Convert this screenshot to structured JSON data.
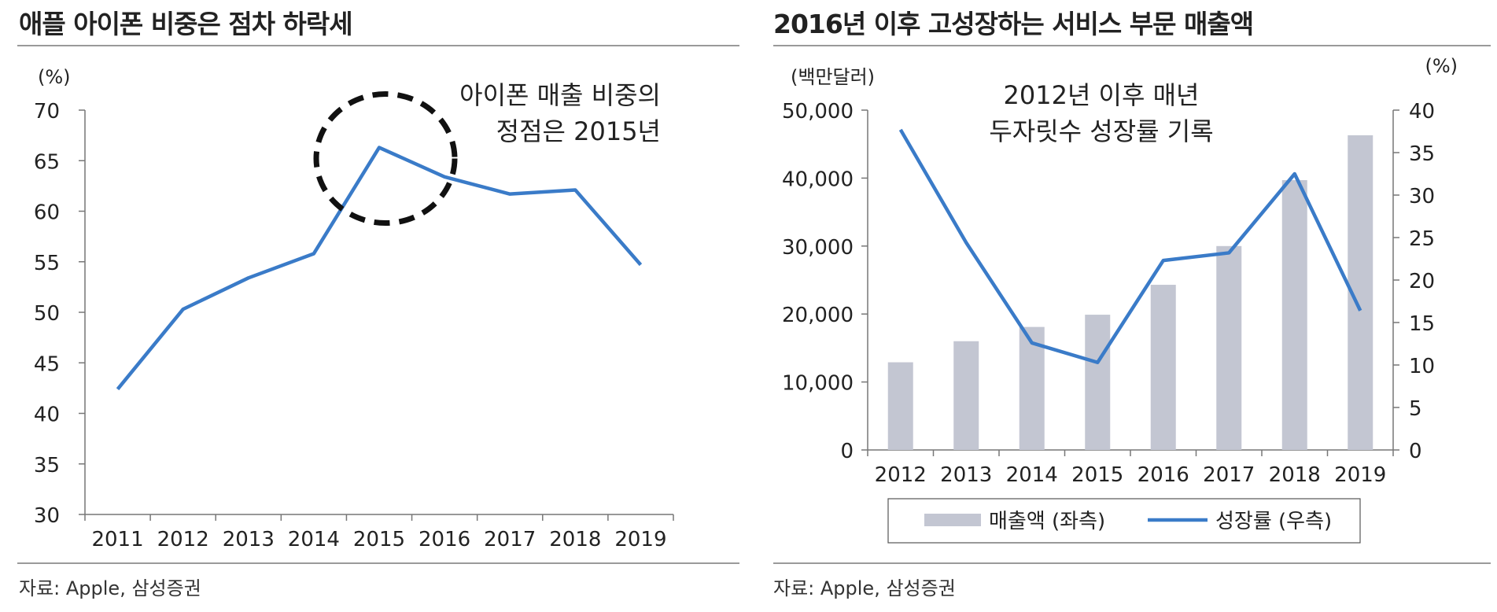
{
  "left": {
    "title": "애플 아이폰 비중은 점차 하락세",
    "source": "자료: Apple, 삼성증권"
  },
  "right": {
    "title": "2016년 이후 고성장하는 서비스 부문 매출액",
    "source": "자료: Apple, 삼성증권"
  },
  "colors": {
    "line": "#3a7bc8",
    "bar": "#c3c6d2",
    "axis": "#777777",
    "text": "#222222"
  },
  "chart_data": [
    {
      "type": "line",
      "x": [
        "2011",
        "2012",
        "2013",
        "2014",
        "2015",
        "2016",
        "2017",
        "2018",
        "2019"
      ],
      "values": [
        42.4,
        50.3,
        53.4,
        55.8,
        66.3,
        63.4,
        61.7,
        62.1,
        54.7
      ],
      "ylabel": "(%)",
      "ylim": [
        30,
        70
      ],
      "yticks": [
        "30",
        "35",
        "40",
        "45",
        "50",
        "55",
        "60",
        "65",
        "70"
      ],
      "annotation": [
        "아이폰 매출 비중의",
        "정점은 2015년"
      ],
      "grid": false
    },
    {
      "type": "bar+line",
      "x": [
        "2012",
        "2013",
        "2014",
        "2015",
        "2016",
        "2017",
        "2018",
        "2019"
      ],
      "bars": {
        "name": "매출액 (좌측)",
        "values": [
          12900,
          16000,
          18100,
          19900,
          24300,
          30000,
          39700,
          46300
        ]
      },
      "line": {
        "name": "성장률 (우측)",
        "values": [
          37.7,
          24.4,
          12.6,
          10.3,
          22.3,
          23.2,
          32.5,
          16.4
        ]
      },
      "ylabel_left": "(백만달러)",
      "ylabel_right": "(%)",
      "ylim_left": [
        0,
        50000
      ],
      "ylim_right": [
        0,
        40
      ],
      "yticks_left": [
        "0",
        "10,000",
        "20,000",
        "30,000",
        "40,000",
        "50,000"
      ],
      "yticks_right": [
        "0",
        "5",
        "10",
        "15",
        "20",
        "25",
        "30",
        "35",
        "40"
      ],
      "annotation": [
        "2012년 이후 매년",
        "두자릿수 성장률 기록"
      ],
      "legend": "bottom",
      "grid": false
    }
  ]
}
